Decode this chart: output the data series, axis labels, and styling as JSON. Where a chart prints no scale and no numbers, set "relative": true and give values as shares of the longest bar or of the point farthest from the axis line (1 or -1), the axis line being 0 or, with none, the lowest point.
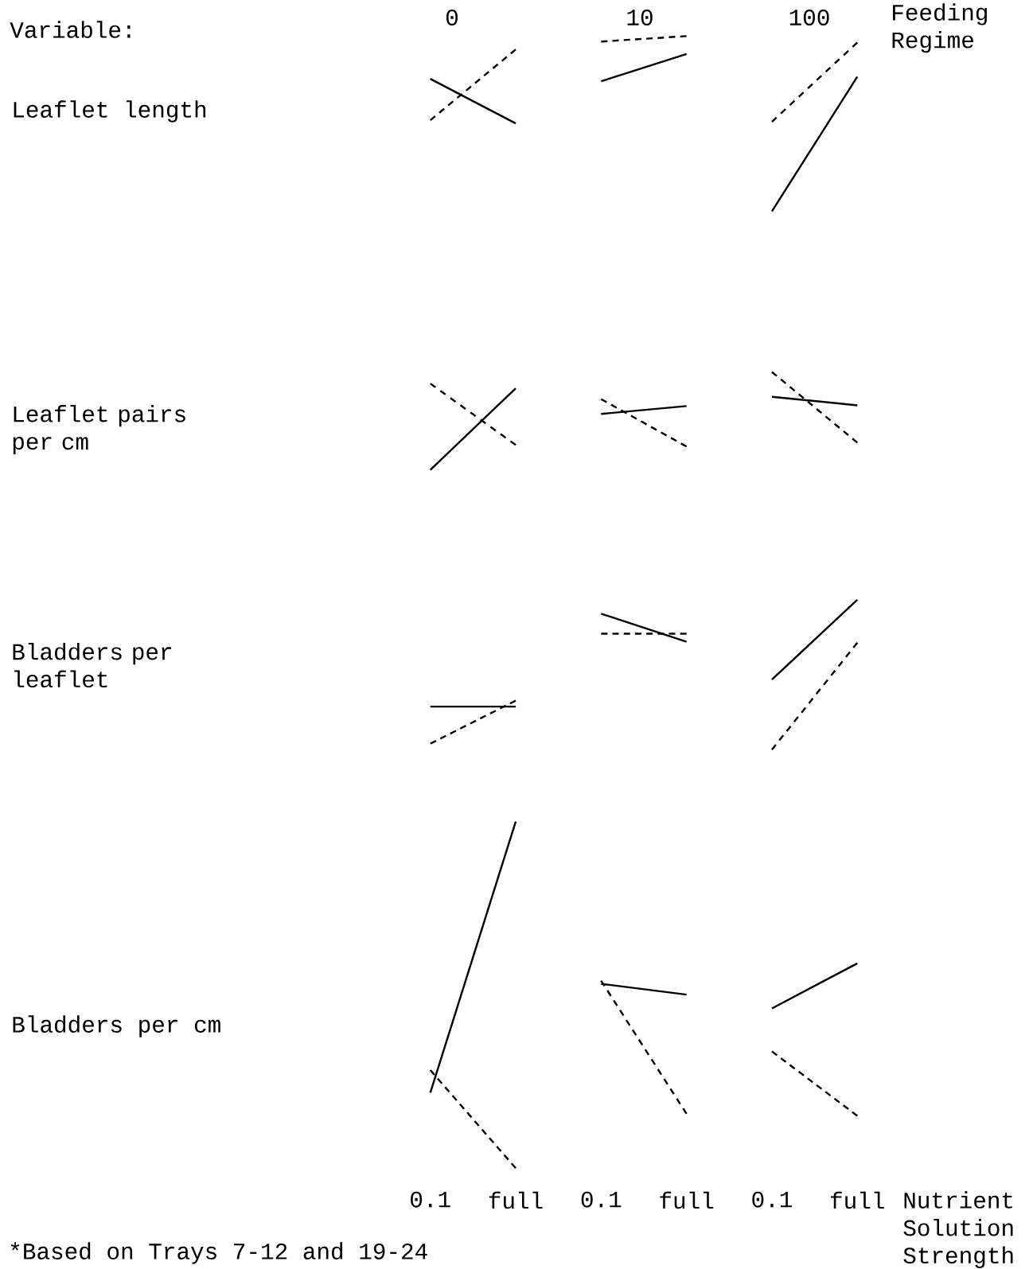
{
  "chart_data": [
    {
      "type": "line",
      "relative": true,
      "ylabel": "Leaflet length",
      "tick_labels": false,
      "annotations": [
        "Variable:",
        "0",
        "10",
        "100",
        "Feeding Regime"
      ],
      "series": [
        {
          "color": "#000000",
          "line_style": "solid",
          "values": [
            0.756,
            0.502,
            null,
            null,
            null,
            null
          ]
        },
        {
          "color": "#000000",
          "line_style": "dashed",
          "values": [
            0.52,
            0.924,
            null,
            null,
            null,
            null
          ]
        },
        {
          "color": "#000000",
          "line_style": "solid",
          "values": [
            null,
            null,
            0.742,
            0.898,
            null,
            null
          ]
        },
        {
          "color": "#000000",
          "line_style": "dashed",
          "values": [
            null,
            null,
            0.969,
            1.0,
            null,
            null
          ]
        },
        {
          "color": "#000000",
          "line_style": "solid",
          "values": [
            null,
            null,
            null,
            null,
            0.0,
            0.769
          ]
        },
        {
          "color": "#000000",
          "line_style": "dashed",
          "values": [
            null,
            null,
            null,
            null,
            0.511,
            0.964
          ]
        }
      ]
    },
    {
      "type": "line",
      "relative": true,
      "ylabel": "Leaflet pairs per cm",
      "tick_labels": false,
      "series": [
        {
          "color": "#000000",
          "line_style": "solid",
          "values": [
            0.0,
            0.833,
            null,
            null,
            null,
            null
          ]
        },
        {
          "color": "#000000",
          "line_style": "dashed",
          "values": [
            0.881,
            0.254,
            null,
            null,
            null,
            null
          ]
        },
        {
          "color": "#000000",
          "line_style": "solid",
          "values": [
            null,
            null,
            0.571,
            0.651,
            null,
            null
          ]
        },
        {
          "color": "#000000",
          "line_style": "dashed",
          "values": [
            null,
            null,
            0.722,
            0.238,
            null,
            null
          ]
        },
        {
          "color": "#000000",
          "line_style": "solid",
          "values": [
            null,
            null,
            null,
            null,
            0.746,
            0.659
          ]
        },
        {
          "color": "#000000",
          "line_style": "dashed",
          "values": [
            null,
            null,
            null,
            null,
            1.0,
            0.278
          ]
        }
      ]
    },
    {
      "type": "line",
      "relative": true,
      "ylabel": "Bladders per leaflet",
      "tick_labels": false,
      "series": [
        {
          "color": "#000000",
          "line_style": "solid",
          "values": [
            0.287,
            0.287,
            null,
            null,
            null,
            null
          ]
        },
        {
          "color": "#000000",
          "line_style": "dashed",
          "values": [
            0.04,
            0.327,
            null,
            null,
            null,
            null
          ]
        },
        {
          "color": "#000000",
          "line_style": "solid",
          "values": [
            null,
            null,
            0.907,
            0.72,
            null,
            null
          ]
        },
        {
          "color": "#000000",
          "line_style": "dashed",
          "values": [
            null,
            null,
            0.773,
            0.773,
            null,
            null
          ]
        },
        {
          "color": "#000000",
          "line_style": "solid",
          "values": [
            null,
            null,
            null,
            null,
            0.467,
            1.0
          ]
        },
        {
          "color": "#000000",
          "line_style": "dashed",
          "values": [
            null,
            null,
            null,
            null,
            0.0,
            0.713
          ]
        }
      ]
    },
    {
      "type": "line",
      "relative": true,
      "ylabel": "Bladders per cm",
      "xlabel": "Nutrient Solution Strength",
      "tick_labels": "x",
      "categories": [
        "0.1",
        "full",
        "0.1",
        "full",
        "0.1",
        "full"
      ],
      "annotations": [
        "*Based on Trays 7-12 and 19-24"
      ],
      "series": [
        {
          "color": "#000000",
          "line_style": "solid",
          "values": [
            0.218,
            1.0,
            null,
            null,
            null,
            null
          ]
        },
        {
          "color": "#000000",
          "line_style": "dashed",
          "values": [
            0.283,
            0.0,
            null,
            null,
            null,
            null
          ]
        },
        {
          "color": "#000000",
          "line_style": "solid",
          "values": [
            null,
            null,
            0.532,
            0.501,
            null,
            null
          ]
        },
        {
          "color": "#000000",
          "line_style": "dashed",
          "values": [
            null,
            null,
            0.541,
            0.157,
            null,
            null
          ]
        },
        {
          "color": "#000000",
          "line_style": "solid",
          "values": [
            null,
            null,
            null,
            null,
            0.461,
            0.591
          ]
        },
        {
          "color": "#000000",
          "line_style": "dashed",
          "values": [
            null,
            null,
            null,
            null,
            0.337,
            0.151
          ]
        }
      ]
    }
  ]
}
